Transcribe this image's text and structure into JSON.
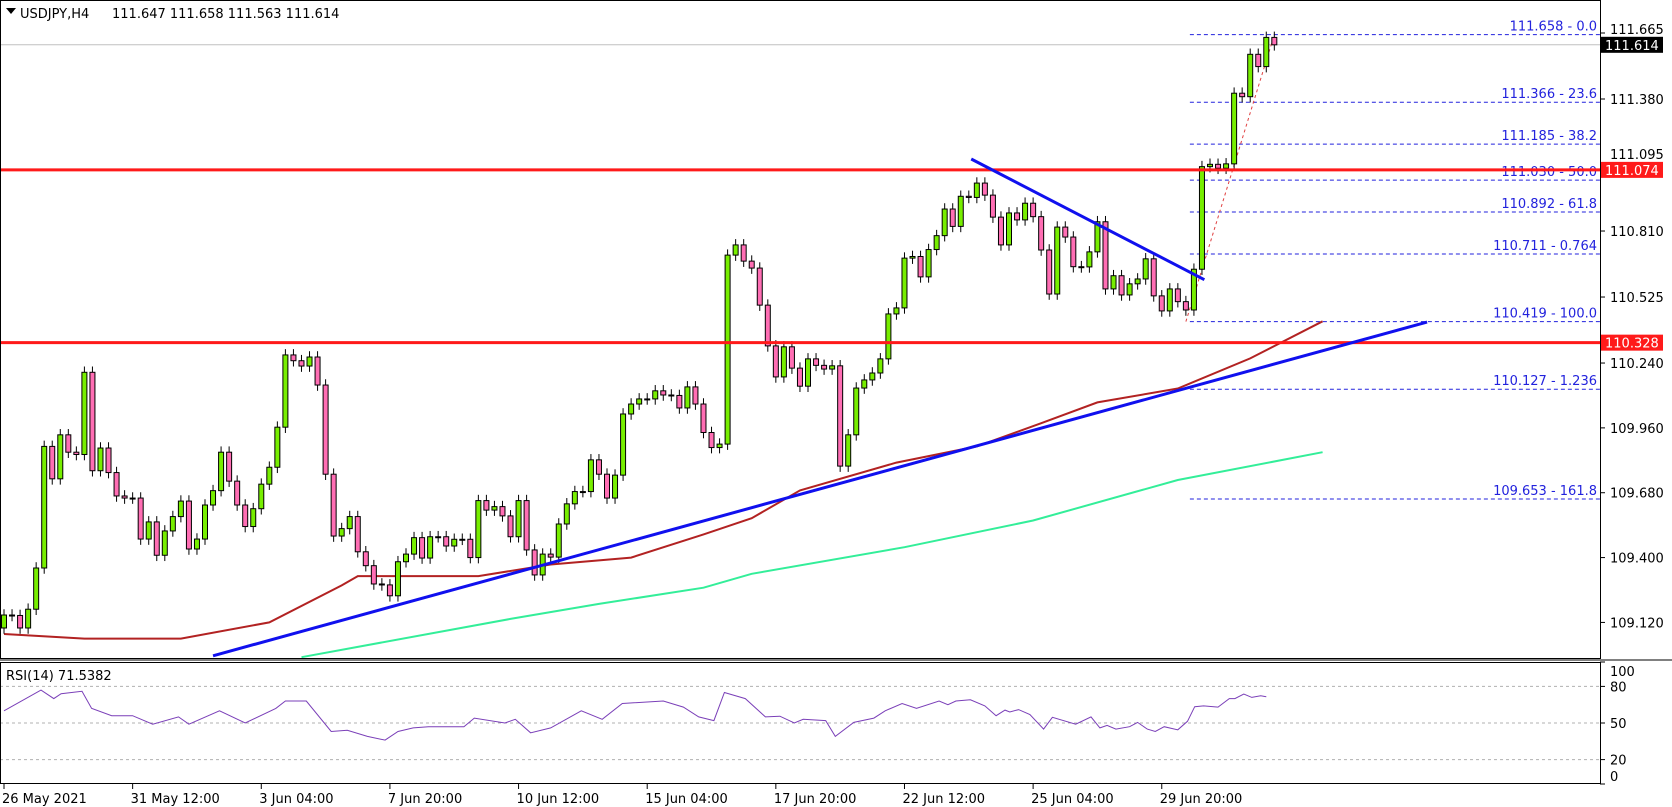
{
  "header": {
    "symbol": "USDJPY,H4",
    "ohlc_text": "111.647 111.658 111.563 111.614",
    "menu_icon": "triangle-down-icon"
  },
  "rsi_header": "RSI(14) 71.5382",
  "colors": {
    "bull": "#77ee00",
    "bear": "#ff6eb4",
    "support_resistance": "#ff1a1a",
    "trendline": "#1010ee",
    "ma_red": "#b22222",
    "ma_green": "#33ee99",
    "rsi": "#7a3fb8",
    "fib": "#2222dd"
  },
  "chart_data": [
    {
      "type": "candlestick",
      "title": "USDJPY,H4",
      "timeframe": "H4",
      "last_ohlc": [
        111.647,
        111.658,
        111.563,
        111.614
      ],
      "ylim": [
        108.966,
        111.807
      ],
      "y_ticks": [
        "111.665",
        "111.380",
        "111.095",
        "110.810",
        "110.525",
        "110.240",
        "109.960",
        "109.680",
        "109.400",
        "109.120"
      ],
      "x_ticks": [
        {
          "bar": 0,
          "label": "26 May 2021"
        },
        {
          "bar": 16,
          "label": "31 May 12:00"
        },
        {
          "bar": 32,
          "label": "3 Jun 04:00"
        },
        {
          "bar": 48,
          "label": "7 Jun 20:00"
        },
        {
          "bar": 64,
          "label": "10 Jun 12:00"
        },
        {
          "bar": 80,
          "label": "15 Jun 04:00"
        },
        {
          "bar": 96,
          "label": "17 Jun 20:00"
        },
        {
          "bar": 112,
          "label": "22 Jun 12:00"
        },
        {
          "bar": 128,
          "label": "25 Jun 04:00"
        },
        {
          "bar": 144,
          "label": "29 Jun 20:00"
        }
      ],
      "closes": [
        109.152,
        109.15,
        109.096,
        109.177,
        109.355,
        109.88,
        109.74,
        109.93,
        109.855,
        109.845,
        110.2,
        109.775,
        109.873,
        109.767,
        109.666,
        109.657,
        109.657,
        109.48,
        109.554,
        109.41,
        109.515,
        109.577,
        109.644,
        109.437,
        109.48,
        109.627,
        109.689,
        109.855,
        109.73,
        109.627,
        109.534,
        109.611,
        109.717,
        109.79,
        109.963,
        110.275,
        110.25,
        110.227,
        110.266,
        110.145,
        109.76,
        109.493,
        109.525,
        109.577,
        109.425,
        109.365,
        109.286,
        109.282,
        109.235,
        109.382,
        109.415,
        109.486,
        109.398,
        109.49,
        109.49,
        109.45,
        109.479,
        109.479,
        109.4,
        109.646,
        109.605,
        109.62,
        109.58,
        109.49,
        109.646,
        109.433,
        109.325,
        109.415,
        109.402,
        109.545,
        109.632,
        109.685,
        109.685,
        109.822,
        109.76,
        109.657,
        109.756,
        110.02,
        110.063,
        110.085,
        110.085,
        110.12,
        110.102,
        110.1,
        110.046,
        110.137,
        110.063,
        109.94,
        109.875,
        109.89,
        110.706,
        110.75,
        110.68,
        110.65,
        110.49,
        110.314,
        110.18,
        110.31,
        110.218,
        110.14,
        110.258,
        110.23,
        110.214,
        110.228,
        109.795,
        109.93,
        110.132,
        110.167,
        110.197,
        110.258,
        110.452,
        110.478,
        110.693,
        110.7,
        110.612,
        110.73,
        110.79,
        110.905,
        110.83,
        110.96,
        110.955,
        111.017,
        110.965,
        110.87,
        110.75,
        110.888,
        110.858,
        110.93,
        110.872,
        110.728,
        110.538,
        110.827,
        110.784,
        110.656,
        110.655,
        110.72,
        110.85,
        110.56,
        110.617,
        110.534,
        110.582,
        110.603,
        110.69,
        110.53,
        110.465,
        110.56,
        110.505,
        110.469,
        110.645,
        111.088,
        111.098,
        111.081,
        111.1,
        111.405,
        111.39,
        111.573,
        111.52,
        111.646,
        111.614
      ],
      "first_open": 109.096,
      "current_price": "111.614",
      "horizontal_levels": [
        {
          "price": 111.074,
          "label": "111.074"
        },
        {
          "price": 110.328,
          "label": "110.328"
        }
      ],
      "trendlines": [
        {
          "name": "rising-support",
          "from": [
            26,
            108.976
          ],
          "to": [
            177,
            110.417
          ]
        },
        {
          "name": "falling-resistance",
          "from": [
            120.3,
            111.121
          ],
          "to": [
            149.3,
            110.6
          ]
        }
      ],
      "moving_averages": [
        {
          "name": "red-ma",
          "points": [
            [
              0,
              109.07
            ],
            [
              10,
              109.05
            ],
            [
              22,
              109.05
            ],
            [
              33,
              109.12
            ],
            [
              42,
              109.28
            ],
            [
              44,
              109.32
            ],
            [
              59,
              109.32
            ],
            [
              68,
              109.37
            ],
            [
              78,
              109.4
            ],
            [
              87,
              109.5
            ],
            [
              93,
              109.57
            ],
            [
              99,
              109.69
            ],
            [
              111,
              109.81
            ],
            [
              121,
              109.88
            ],
            [
              129,
              109.98
            ],
            [
              136,
              110.07
            ],
            [
              146,
              110.13
            ],
            [
              155,
              110.26
            ],
            [
              164,
              110.42
            ]
          ]
        },
        {
          "name": "green-ma",
          "points": [
            [
              37,
              108.97
            ],
            [
              63,
              109.135
            ],
            [
              74,
              109.2
            ],
            [
              87,
              109.27
            ],
            [
              93,
              109.33
            ],
            [
              112,
              109.445
            ],
            [
              128,
              109.56
            ],
            [
              146,
              109.735
            ],
            [
              164,
              109.855
            ]
          ]
        }
      ],
      "fibonacci": {
        "from": [
          147,
          110.419
        ],
        "to": [
          158,
          111.658
        ],
        "levels": [
          {
            "price": 111.658,
            "label": "111.658 - 0.0"
          },
          {
            "price": 111.366,
            "label": "111.366 - 23.6"
          },
          {
            "price": 111.185,
            "label": "111.185 - 38.2"
          },
          {
            "price": 111.03,
            "label": "111.030 - 50.0"
          },
          {
            "price": 110.892,
            "label": "110.892 - 61.8"
          },
          {
            "price": 110.711,
            "label": "110.711 - 0.764"
          },
          {
            "price": 110.419,
            "label": "110.419 - 100.0"
          },
          {
            "price": 110.127,
            "label": "110.127 - 1.236"
          },
          {
            "price": 109.653,
            "label": "109.653 - 161.8"
          }
        ]
      }
    },
    {
      "type": "line",
      "title": "RSI(14) 71.5382",
      "ylim": [
        0,
        100
      ],
      "y_ticks": [
        "100",
        "80",
        "50",
        "20",
        "0"
      ],
      "levels": [
        80,
        50,
        20
      ],
      "points": [
        [
          0,
          60
        ],
        [
          4.6,
          77
        ],
        [
          6.2,
          70
        ],
        [
          7.1,
          74
        ],
        [
          9.7,
          76
        ],
        [
          10.9,
          62
        ],
        [
          13.4,
          56
        ],
        [
          16,
          56
        ],
        [
          18.5,
          49
        ],
        [
          21.7,
          55
        ],
        [
          23,
          49
        ],
        [
          26.8,
          60
        ],
        [
          30,
          50
        ],
        [
          33.8,
          62
        ],
        [
          35,
          68
        ],
        [
          37.6,
          68
        ],
        [
          40.7,
          43
        ],
        [
          42.7,
          44
        ],
        [
          45.2,
          39
        ],
        [
          47.4,
          36
        ],
        [
          49,
          43
        ],
        [
          50.9,
          46
        ],
        [
          52.8,
          47
        ],
        [
          57.2,
          47
        ],
        [
          58.5,
          54
        ],
        [
          62.3,
          50
        ],
        [
          63.6,
          53
        ],
        [
          65.5,
          42
        ],
        [
          68,
          46
        ],
        [
          71.8,
          60
        ],
        [
          74.4,
          53
        ],
        [
          76.9,
          66
        ],
        [
          82,
          68
        ],
        [
          84.5,
          63
        ],
        [
          86.4,
          55
        ],
        [
          88.3,
          52
        ],
        [
          89.6,
          75
        ],
        [
          92.2,
          70
        ],
        [
          94.7,
          55
        ],
        [
          96.5,
          55.6
        ],
        [
          98.3,
          50
        ],
        [
          99.4,
          53
        ],
        [
          102.2,
          52
        ],
        [
          103.4,
          39
        ],
        [
          105.7,
          50.5
        ],
        [
          108.2,
          54
        ],
        [
          109.6,
          60
        ],
        [
          111.7,
          66
        ],
        [
          113.5,
          62
        ],
        [
          116.3,
          68
        ],
        [
          117.4,
          65
        ],
        [
          118.4,
          68
        ],
        [
          120.2,
          69
        ],
        [
          122,
          64
        ],
        [
          123.4,
          56
        ],
        [
          124.5,
          60.6
        ],
        [
          125.1,
          59
        ],
        [
          126.2,
          61
        ],
        [
          127.6,
          57
        ],
        [
          129.3,
          45
        ],
        [
          130.4,
          54.7
        ],
        [
          133.3,
          49
        ],
        [
          135.2,
          55
        ],
        [
          136.3,
          46
        ],
        [
          137.2,
          48
        ],
        [
          138.3,
          45
        ],
        [
          140,
          47
        ],
        [
          141,
          50.5
        ],
        [
          142.2,
          45
        ],
        [
          143.2,
          43
        ],
        [
          144.3,
          47
        ],
        [
          146,
          44.4
        ],
        [
          147.2,
          51.4
        ],
        [
          148.1,
          63.4
        ],
        [
          149.2,
          64
        ],
        [
          151,
          63
        ],
        [
          152.4,
          70
        ],
        [
          153.1,
          70
        ],
        [
          154.2,
          73.7
        ],
        [
          155.2,
          71
        ],
        [
          156.3,
          72.3
        ],
        [
          157,
          71.5
        ]
      ]
    }
  ]
}
